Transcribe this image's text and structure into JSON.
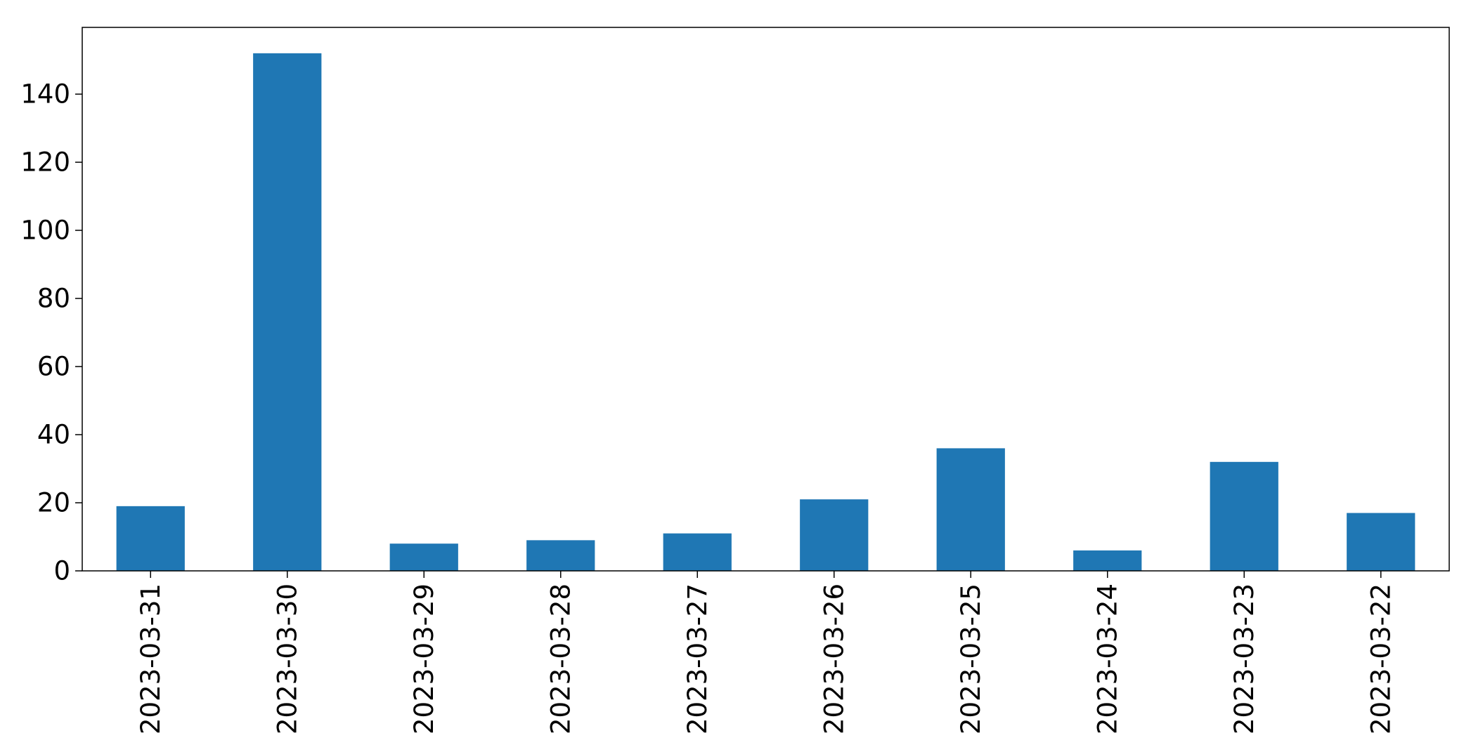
{
  "chart_data": {
    "type": "bar",
    "title": "",
    "xlabel": "",
    "ylabel": "",
    "categories": [
      "2023-03-31",
      "2023-03-30",
      "2023-03-29",
      "2023-03-28",
      "2023-03-27",
      "2023-03-26",
      "2023-03-25",
      "2023-03-24",
      "2023-03-23",
      "2023-03-22"
    ],
    "values": [
      19,
      152,
      8,
      9,
      11,
      21,
      36,
      6,
      32,
      17
    ],
    "ylim": [
      0,
      159.6
    ],
    "yticks": [
      0,
      20,
      40,
      60,
      80,
      100,
      120,
      140
    ],
    "grid": false,
    "legend": "none",
    "bar_color": "#1f77b4"
  }
}
